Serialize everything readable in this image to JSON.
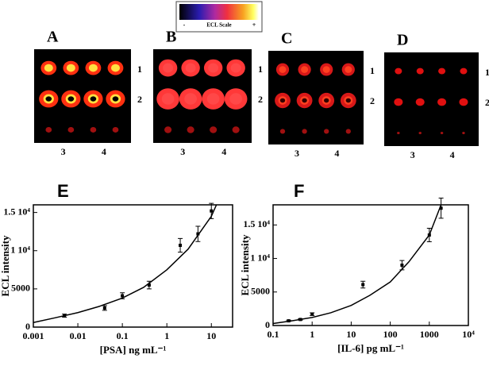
{
  "image_panels": {
    "scale": {
      "title": "ECL Scale",
      "min": "-",
      "max": "+"
    },
    "panels": [
      {
        "label": "A",
        "rows": [
          "1",
          "2"
        ],
        "cols": [
          "3",
          "4"
        ]
      },
      {
        "label": "B",
        "rows": [
          "1",
          "2"
        ],
        "cols": [
          "3",
          "4"
        ]
      },
      {
        "label": "C",
        "rows": [
          "1",
          "2"
        ],
        "cols": [
          "3",
          "4"
        ]
      },
      {
        "label": "D",
        "rows": [
          "1",
          "2"
        ],
        "cols": [
          "3",
          "4"
        ]
      }
    ]
  },
  "chart_data": [
    {
      "type": "scatter",
      "title": "E",
      "x_label": "[PSA] ng mL⁻¹",
      "y_label": "ECL intensity",
      "xlog": true,
      "xlim": [
        0.001,
        30
      ],
      "ylim": [
        0,
        16000
      ],
      "xticks": [
        0.001,
        0.01,
        0.1,
        1,
        10
      ],
      "yticks": [
        0,
        5000,
        {
          "value": 10000,
          "label": "1 10⁴"
        },
        {
          "value": 15000,
          "label": "1.5 10⁴"
        }
      ],
      "series": [
        {
          "style": "markers",
          "color": "#000000",
          "x": [
            0.005,
            0.04,
            0.1,
            0.4,
            2,
            5,
            10
          ],
          "values": [
            1500,
            2500,
            4100,
            5500,
            10700,
            12200,
            15200
          ],
          "errors": [
            200,
            300,
            400,
            500,
            900,
            1000,
            1000
          ]
        },
        {
          "style": "line",
          "color": "#000000",
          "x": [
            0.001,
            0.003,
            0.01,
            0.03,
            0.1,
            0.3,
            1,
            3,
            10,
            13
          ],
          "values": [
            600,
            1200,
            1900,
            2700,
            3800,
            5200,
            7500,
            10200,
            14500,
            16000
          ]
        }
      ]
    },
    {
      "type": "scatter",
      "title": "F",
      "x_label": "[IL-6] pg mL⁻¹",
      "y_label": "ECL intensity",
      "xlog": true,
      "xlim": [
        0.1,
        10000
      ],
      "ylim": [
        0,
        18000
      ],
      "xticks": [
        0.1,
        1,
        10,
        100,
        1000,
        {
          "value": 10000,
          "label": "10⁴"
        }
      ],
      "yticks": [
        0,
        5000,
        {
          "value": 10000,
          "label": "1 10⁴"
        },
        {
          "value": 15000,
          "label": "1.5 10⁴"
        }
      ],
      "series": [
        {
          "style": "markers",
          "color": "#000000",
          "x": [
            0.25,
            0.5,
            1,
            20,
            200,
            1000,
            2000
          ],
          "values": [
            700,
            900,
            1700,
            6100,
            9000,
            13500,
            17500
          ],
          "errors": [
            100,
            100,
            200,
            500,
            700,
            1000,
            1500
          ]
        },
        {
          "style": "line",
          "color": "#000000",
          "x": [
            0.1,
            0.3,
            1,
            3,
            10,
            30,
            100,
            300,
            1000,
            2000
          ],
          "values": [
            300,
            700,
            1200,
            1900,
            3000,
            4500,
            6500,
            9500,
            13500,
            18000
          ]
        }
      ]
    }
  ]
}
